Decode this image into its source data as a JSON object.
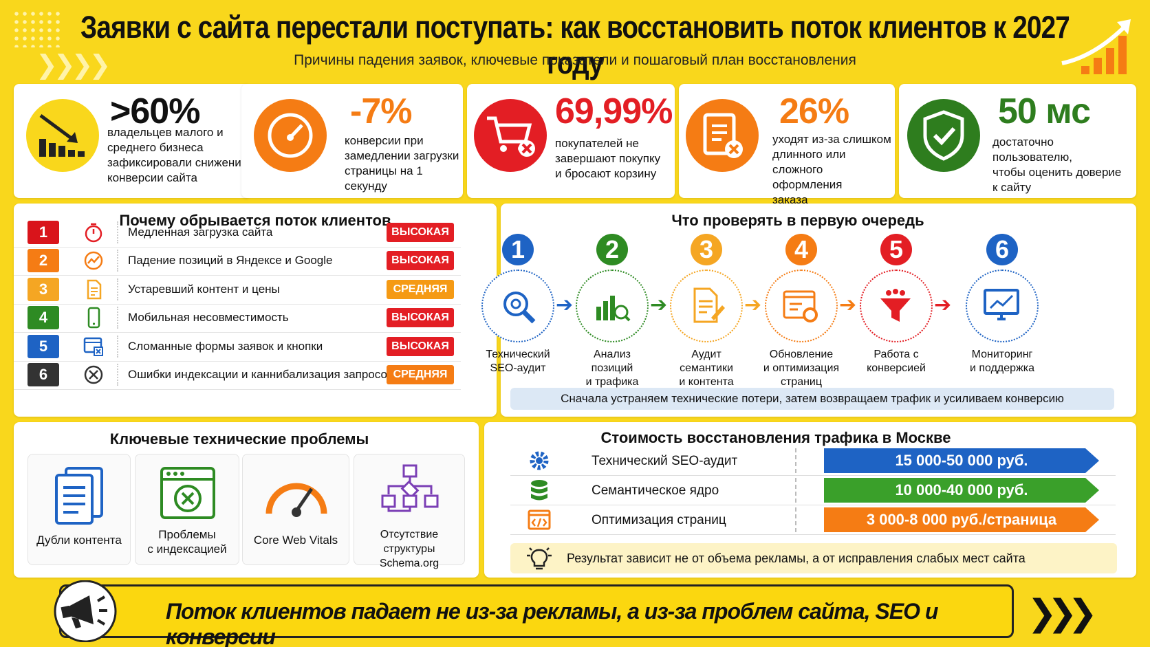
{
  "header": {
    "title": "Заявки с сайта перестали поступать: как восстановить поток клиентов к 2027 году",
    "subtitle": "Причины падения заявок, ключевые показатели и пошаговый план восстановления"
  },
  "stats": [
    {
      "value": ">60%",
      "lines": [
        "владельцев малого и",
        "среднего бизнеса",
        "зафиксировали снижение",
        "конверсии сайта"
      ],
      "icon": "chart-down-icon",
      "color": "#f9d71c"
    },
    {
      "value": "-7%",
      "lines": [
        "конверсии при",
        "замедлении загрузки",
        "страницы на 1 секунду"
      ],
      "icon": "speedometer-icon",
      "color": "#f57c14"
    },
    {
      "value": "69,99%",
      "lines": [
        "покупателей не",
        "завершают покупку",
        "и бросают корзину"
      ],
      "icon": "cart-cancel-icon",
      "color": "#e31e24"
    },
    {
      "value": "26%",
      "lines": [
        "уходят из-за слишком",
        "длинного или",
        "сложного оформления",
        "заказа"
      ],
      "icon": "clipboard-cancel-icon",
      "color": "#f57c14"
    },
    {
      "value": "50 мс",
      "lines": [
        "достаточно пользователю,",
        "чтобы оценить доверие",
        "к сайту"
      ],
      "icon": "shield-check-icon",
      "color": "#2e7d1e"
    }
  ],
  "reasons": {
    "title": "Почему обрывается поток клиентов",
    "items": [
      {
        "n": "1",
        "text": "Медленная загрузка сайта",
        "level": "ВЫСОКАЯ",
        "num_color": "#d9141b",
        "level_color": "#e31e24",
        "icon_color": "#e31e24"
      },
      {
        "n": "2",
        "text": "Падение позиций в Яндексе и Google",
        "level": "ВЫСОКАЯ",
        "num_color": "#f57c14",
        "level_color": "#e31e24",
        "icon_color": "#f57c14"
      },
      {
        "n": "3",
        "text": "Устаревший контент и цены",
        "level": "СРЕДНЯЯ",
        "num_color": "#f5a623",
        "level_color": "#f59a14",
        "icon_color": "#f5a623"
      },
      {
        "n": "4",
        "text": "Мобильная несовместимость",
        "level": "ВЫСОКАЯ",
        "num_color": "#2e8b23",
        "level_color": "#e31e24",
        "icon_color": "#2e8b23"
      },
      {
        "n": "5",
        "text": "Сломанные формы заявок и кнопки",
        "level": "ВЫСОКАЯ",
        "num_color": "#1e63c4",
        "level_color": "#e31e24",
        "icon_color": "#1e63c4"
      },
      {
        "n": "6",
        "text": "Ошибки индексации и каннибализация запросов",
        "level": "СРЕДНЯЯ",
        "num_color": "#333333",
        "level_color": "#f57c14",
        "icon_color": "#333333"
      }
    ]
  },
  "check": {
    "title": "Что проверять в первую очередь",
    "steps": [
      {
        "n": "1",
        "label": [
          "Технический",
          "SEO-аудит"
        ],
        "color": "#1e63c4"
      },
      {
        "n": "2",
        "label": [
          "Анализ",
          "позиций",
          "и трафика"
        ],
        "color": "#2e8b23"
      },
      {
        "n": "3",
        "label": [
          "Аудит",
          "семантики",
          "и контента"
        ],
        "color": "#f5a623"
      },
      {
        "n": "4",
        "label": [
          "Обновление",
          "и оптимизация",
          "страниц"
        ],
        "color": "#f57c14"
      },
      {
        "n": "5",
        "label": [
          "Работа с",
          "конверсией"
        ],
        "color": "#e31e24"
      },
      {
        "n": "6",
        "label": [
          "Мониторинг",
          "и поддержка"
        ],
        "color": "#1e63c4"
      }
    ],
    "note": "Сначала устраняем технические потери, затем возвращаем трафик и усиливаем конверсию"
  },
  "tech": {
    "title": "Ключевые технические проблемы",
    "items": [
      {
        "label": [
          "Дубли контента"
        ],
        "color": "#1e63c4"
      },
      {
        "label": [
          "Проблемы",
          "с индексацией"
        ],
        "color": "#2e8b23"
      },
      {
        "label": [
          "Core Web Vitals"
        ],
        "color": "#f57c14"
      },
      {
        "label": [
          "Отсутствие",
          "структуры Schema.org"
        ],
        "color": "#7b3fb5"
      }
    ]
  },
  "costs": {
    "title": "Стоимость восстановления трафика  в Москве",
    "rows": [
      {
        "label": "Технический SEO-аудит",
        "price": "15 000-50 000 руб.",
        "color": "#1e63c4",
        "icon": "gear-icon"
      },
      {
        "label": "Семантическое ядро",
        "price": "10 000-40 000 руб.",
        "color": "#3aa02a",
        "icon": "database-icon"
      },
      {
        "label": "Оптимизация страниц",
        "price": "3 000-8 000 руб./страница",
        "color": "#f57c14",
        "icon": "code-window-icon"
      }
    ],
    "note": "Результат зависит не от объема рекламы, а от исправления слабых мест сайта"
  },
  "footer": {
    "text": "Поток клиентов падает не из-за рекламы, а из-за проблем сайта, SEO и конверсии"
  }
}
